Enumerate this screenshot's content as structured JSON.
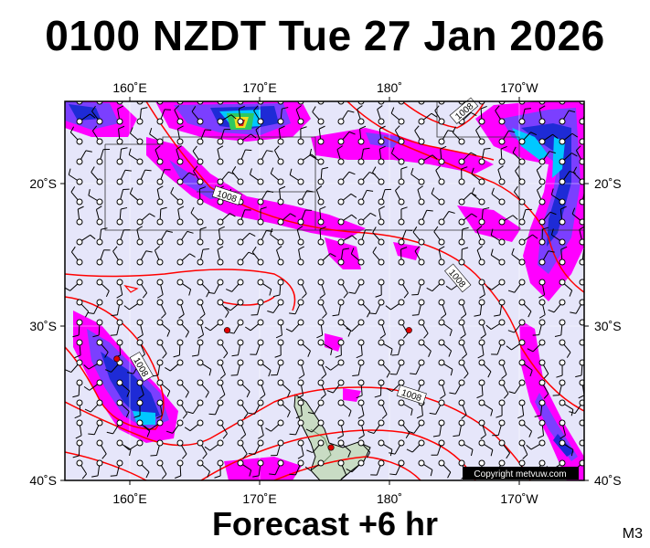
{
  "title": "0100 NZDT Tue 27 Jan 2026",
  "footer": "Forecast +6 hr",
  "code": "M3",
  "copyright": "Copyright metvuw.com",
  "lon_labels": [
    "160˚E",
    "170˚E",
    "180˚",
    "170˚W"
  ],
  "lat_labels": [
    "20˚S",
    "30˚S",
    "40˚S"
  ],
  "isobar_label": "1008",
  "map_extent": {
    "lon_west": 155.5,
    "lon_east": 195.5,
    "lat_north": -13.5,
    "lat_south": -40
  },
  "colors": {
    "ocean": "#e6e6fa",
    "isobar": "#ff0000",
    "rain_light": "#ff00ff",
    "rain_medium": "#7b3fff",
    "rain_heavy": "#1e2bd6",
    "rain_very_heavy": "#00c8ff",
    "land": "#c9dcc4"
  },
  "low_markers": [
    {
      "lon": 168,
      "lat": -29.5
    },
    {
      "lon": 182,
      "lat": -29.5
    },
    {
      "lon": 159.5,
      "lat": -31.5
    },
    {
      "lon": 176,
      "lat": -37.7
    }
  ]
}
